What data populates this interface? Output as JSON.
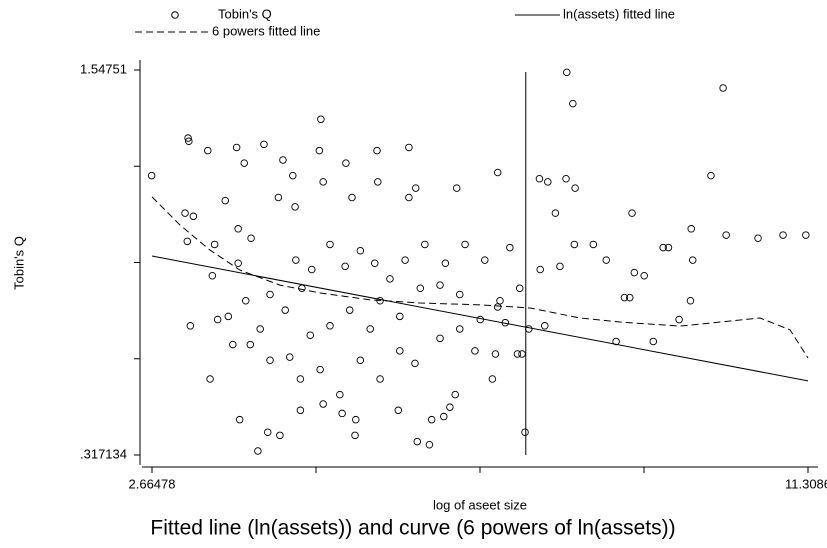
{
  "chart_data": {
    "type": "scatter",
    "title": "Fitted line (ln(assets)) and curve (6 powers of ln(assets))",
    "x_label": "log of aseet size",
    "y_label": "Tobin's Q",
    "xlim": [
      2.66478,
      11.3086
    ],
    "ylim": [
      0.317134,
      1.54751
    ],
    "xticks": [
      2.66478,
      {
        "value": 4.82574,
        "label": null
      },
      {
        "value": 6.98669,
        "label": null
      },
      {
        "value": 9.14765,
        "label": null
      },
      11.3086
    ],
    "yticks": [
      {
        "value": 0.317134,
        "label": ".317134"
      },
      {
        "value": 0.624728,
        "label": null
      },
      {
        "value": 0.932322,
        "label": null
      },
      {
        "value": 1.239916,
        "label": null
      },
      1.54751
    ],
    "xline": 7.59,
    "series": [
      {
        "name": "Tobin's Q",
        "type": "scatter",
        "color": "#000000",
        "x": [
          2.66,
          3.14,
          3.15,
          3.1,
          3.21,
          3.4,
          3.13,
          3.49,
          3.46,
          3.17,
          3.43,
          3.63,
          3.78,
          3.88,
          3.8,
          3.8,
          3.9,
          3.97,
          4.14,
          4.33,
          4.39,
          4.52,
          4.55,
          4.56,
          4.87,
          4.89,
          4.92,
          5.22,
          5.3,
          5.63,
          5.64,
          6.05,
          6.05,
          6.14,
          6.68,
          7.22,
          7.38,
          7.77,
          7.88,
          7.98,
          8.13,
          8.21,
          8.12,
          8.24,
          8.99,
          10.19,
          10.03,
          9.77,
          9.79,
          10.23,
          10.65,
          10.98,
          11.28,
          9.4,
          9.47,
          8.65,
          9.02,
          9.15,
          8.96,
          8.89,
          9.76,
          9.61,
          8.78,
          9.27,
          8.48,
          8.23,
          8.04,
          7.78,
          7.51,
          7.63,
          7.48,
          7.54,
          7.19,
          7.15,
          6.92,
          6.66,
          6.59,
          6.51,
          6.35,
          6.16,
          6.32,
          5.91,
          5.35,
          5.34,
          5.17,
          4.92,
          4.62,
          4.35,
          4.19,
          4.06,
          3.82,
          3.67,
          3.53,
          3.73,
          3.96,
          4.22,
          4.48,
          4.75,
          5.01,
          5.27,
          5.54,
          5.67,
          5.93,
          6.2,
          6.46,
          6.72,
          6.99,
          7.25,
          4.64,
          4.77,
          5.01,
          5.21,
          5.41,
          5.6,
          5.8,
          6.0,
          6.26,
          6.53,
          6.79,
          7.05,
          4.22,
          4.42,
          4.09,
          4.62,
          4.88,
          5.14,
          5.41,
          5.67,
          5.93,
          6.13,
          6.46,
          6.72,
          7.58,
          7.22,
          7.32,
          7.84
        ],
        "values": [
          1.21,
          1.33,
          1.32,
          1.09,
          1.08,
          1.29,
          1.0,
          0.99,
          0.89,
          0.73,
          0.56,
          1.13,
          1.3,
          1.25,
          1.04,
          0.93,
          0.81,
          1.01,
          1.31,
          1.14,
          1.26,
          1.21,
          1.11,
          0.94,
          1.29,
          1.39,
          1.19,
          1.25,
          1.14,
          1.29,
          1.19,
          1.3,
          1.14,
          1.17,
          1.17,
          1.22,
          0.98,
          1.2,
          1.19,
          1.09,
          1.54,
          1.44,
          1.2,
          1.17,
          1.09,
          1.49,
          1.21,
          1.04,
          0.94,
          1.02,
          1.01,
          1.02,
          1.02,
          0.98,
          0.98,
          0.94,
          0.9,
          0.89,
          0.82,
          0.82,
          0.81,
          0.75,
          0.68,
          0.68,
          0.99,
          0.99,
          0.92,
          0.91,
          0.85,
          0.72,
          0.64,
          0.64,
          0.64,
          0.56,
          0.65,
          0.51,
          0.47,
          0.44,
          0.43,
          0.36,
          0.35,
          0.46,
          0.43,
          0.38,
          0.45,
          0.48,
          0.46,
          0.38,
          0.39,
          0.33,
          0.43,
          0.76,
          0.75,
          0.67,
          0.67,
          0.62,
          0.63,
          0.7,
          0.73,
          0.78,
          0.72,
          0.81,
          0.76,
          0.85,
          0.86,
          0.83,
          0.75,
          0.81,
          0.85,
          0.91,
          0.99,
          0.92,
          0.97,
          0.93,
          0.88,
          0.94,
          0.99,
          0.93,
          0.99,
          0.94,
          0.83,
          0.78,
          0.72,
          0.56,
          0.59,
          0.51,
          0.62,
          0.56,
          0.65,
          0.61,
          0.69,
          0.72,
          0.39,
          0.79,
          0.74,
          0.73
        ]
      },
      {
        "name": "ln(assets) fitted line",
        "type": "line",
        "color": "#000000",
        "dash": false,
        "x": [
          2.66478,
          11.3086
        ],
        "values": [
          0.953,
          0.554
        ]
      },
      {
        "name": "6 powers fitted line",
        "type": "line",
        "color": "#000000",
        "dash": true,
        "x": [
          2.665,
          3.034,
          3.429,
          3.824,
          4.351,
          4.879,
          5.537,
          6.196,
          6.987,
          7.646,
          8.304,
          8.831,
          9.622,
          10.149,
          10.676,
          11.072,
          11.3086
        ],
        "values": [
          1.142,
          1.052,
          0.972,
          0.908,
          0.86,
          0.835,
          0.813,
          0.803,
          0.797,
          0.787,
          0.755,
          0.742,
          0.729,
          0.742,
          0.755,
          0.717,
          0.627
        ]
      }
    ]
  }
}
